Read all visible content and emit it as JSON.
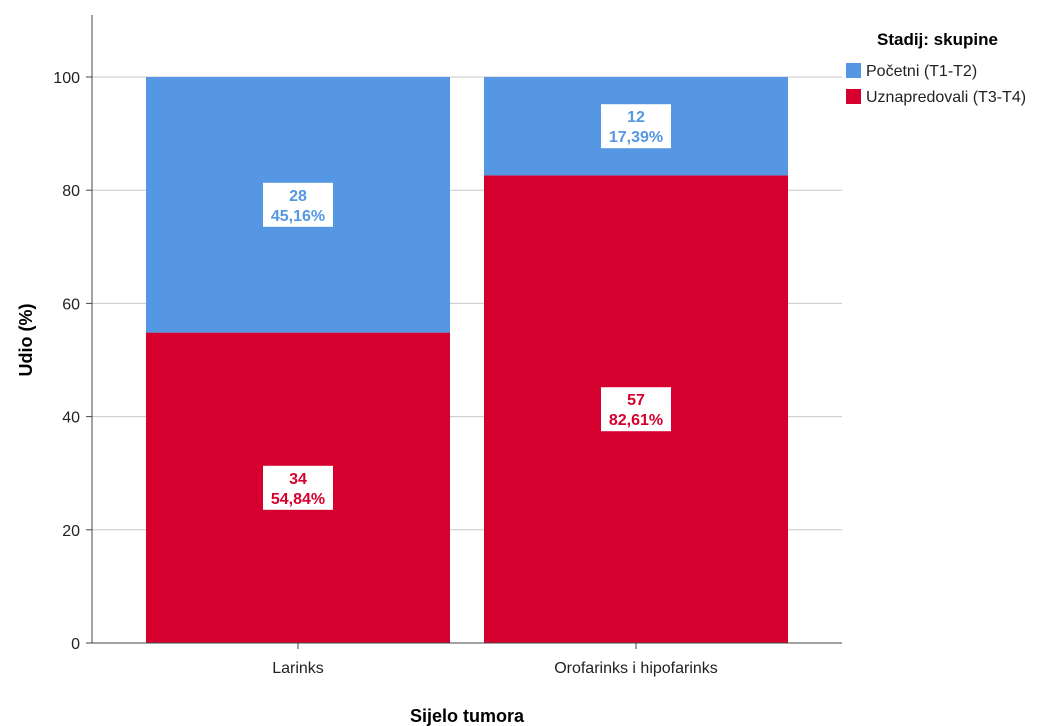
{
  "chart_data": {
    "type": "bar",
    "stacked": true,
    "categories": [
      "Larinks",
      "Orofarinks i hipofarinks"
    ],
    "series": [
      {
        "name": "Uznapredovali (T3-T4)",
        "color": "#d5002e",
        "values": [
          54.84,
          82.61
        ],
        "counts": [
          "34",
          "57"
        ],
        "percent_labels": [
          "54,84%",
          "82,61%"
        ]
      },
      {
        "name": "Početni (T1-T2)",
        "color": "#5597e3",
        "values": [
          45.16,
          17.39
        ],
        "counts": [
          "28",
          "12"
        ],
        "percent_labels": [
          "45,16%",
          "17,39%"
        ]
      }
    ],
    "xlabel": "Sijelo tumora",
    "ylabel": "Udio (%)",
    "ylim": [
      0,
      100
    ],
    "yticks": [
      0,
      20,
      40,
      60,
      80,
      100
    ],
    "grid": true,
    "legend": {
      "title": "Stadij: skupine",
      "placement": "top-right",
      "items": [
        {
          "label": "Početni (T1-T2)",
          "color": "#5597e3"
        },
        {
          "label": "Uznapredovali (T3-T4)",
          "color": "#d5002e"
        }
      ]
    }
  }
}
